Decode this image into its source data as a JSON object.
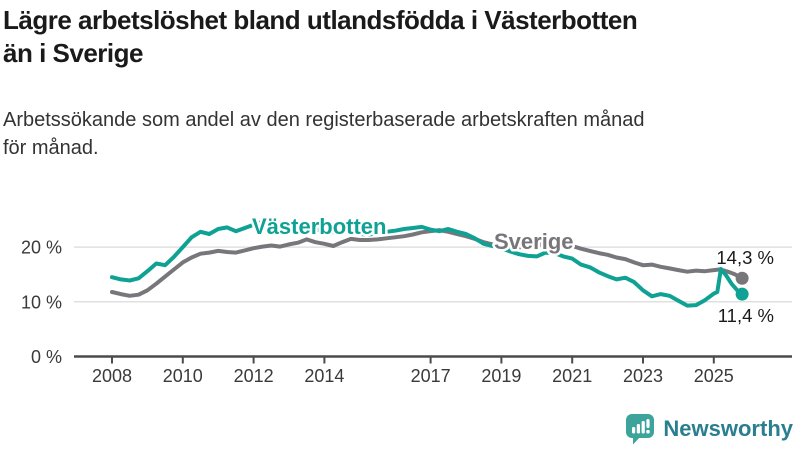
{
  "header": {
    "title": "Lägre arbetslöshet bland utlandsfödda i Västerbotten än i Sverige",
    "title_lines": [
      "Lägre arbetslöshet bland utlandsfödda i Västerbotten",
      "än i Sverige"
    ],
    "subtitle": "Arbetssökande som andel av den registerbaserade arbetskraften månad för månad.",
    "subtitle_lines": [
      "Arbetssökande som andel av den registerbaserade arbetskraften månad",
      "för månad."
    ]
  },
  "chart_data": {
    "type": "line",
    "title": "Lägre arbetslöshet bland utlandsfödda i Västerbotten än i Sverige",
    "subtitle": "Arbetssökande som andel av den registerbaserade arbetskraften månad för månad.",
    "unit": "%",
    "grid": "horizontal",
    "legend_position": "inline-labels",
    "xlim": [
      2007.7,
      2026.3
    ],
    "ylim": [
      0,
      27.5
    ],
    "x_ticks": [
      2008,
      2010,
      2012,
      2014,
      2017,
      2019,
      2021,
      2023,
      2025
    ],
    "y_ticks": [
      {
        "value": 0,
        "label": "0 %"
      },
      {
        "value": 10,
        "label": "10 %"
      },
      {
        "value": 20,
        "label": "20 %"
      }
    ],
    "colors": {
      "grid": "#e0e0e0",
      "axis": "#4b4b4b",
      "tick_text": "#3a3a3a",
      "annotation_text": "#1a1a1a"
    },
    "series": [
      {
        "name": "Västerbotten",
        "color": "#0fa294",
        "end_value": 11.4,
        "end_label": "11,4 %",
        "x": [
          2008.0,
          2008.25,
          2008.5,
          2008.75,
          2009.0,
          2009.25,
          2009.5,
          2009.75,
          2010.0,
          2010.25,
          2010.5,
          2010.75,
          2011.0,
          2011.25,
          2011.5,
          2011.75,
          2012.0,
          2012.25,
          2012.5,
          2012.75,
          2013.0,
          2013.25,
          2013.5,
          2013.75,
          2014.0,
          2014.25,
          2014.5,
          2014.75,
          2015.0,
          2015.25,
          2015.5,
          2015.75,
          2016.0,
          2016.25,
          2016.5,
          2016.75,
          2017.0,
          2017.25,
          2017.5,
          2017.75,
          2018.0,
          2018.25,
          2018.5,
          2018.75,
          2019.0,
          2019.25,
          2019.5,
          2019.75,
          2020.0,
          2020.25,
          2020.5,
          2020.75,
          2021.0,
          2021.25,
          2021.5,
          2021.75,
          2022.0,
          2022.25,
          2022.5,
          2022.75,
          2023.0,
          2023.25,
          2023.5,
          2023.75,
          2024.0,
          2024.25,
          2024.5,
          2024.75,
          2025.0,
          2025.1,
          2025.2,
          2025.35,
          2025.5,
          2025.65,
          2025.8
        ],
        "values": [
          14.5,
          14.1,
          13.9,
          14.3,
          15.6,
          17.0,
          16.7,
          18.2,
          20.0,
          21.8,
          22.8,
          22.4,
          23.3,
          23.6,
          22.9,
          23.5,
          24.1,
          24.6,
          24.2,
          23.9,
          23.7,
          23.4,
          23.6,
          23.2,
          23.0,
          22.7,
          22.9,
          22.6,
          22.4,
          22.3,
          22.5,
          22.8,
          23.0,
          23.3,
          23.5,
          23.7,
          23.2,
          22.9,
          23.3,
          22.8,
          22.4,
          21.6,
          20.6,
          20.2,
          19.8,
          19.2,
          18.7,
          18.4,
          18.3,
          19.0,
          18.9,
          18.3,
          17.9,
          16.8,
          16.3,
          15.4,
          14.7,
          14.1,
          14.4,
          13.6,
          12.1,
          11.0,
          11.4,
          11.1,
          10.2,
          9.3,
          9.4,
          10.3,
          11.5,
          11.8,
          16.0,
          14.8,
          13.3,
          12.2,
          11.4
        ]
      },
      {
        "name": "Sverige",
        "color": "#77777b",
        "end_value": 14.3,
        "end_label": "14,3 %",
        "x": [
          2008.0,
          2008.25,
          2008.5,
          2008.75,
          2009.0,
          2009.25,
          2009.5,
          2009.75,
          2010.0,
          2010.25,
          2010.5,
          2010.75,
          2011.0,
          2011.25,
          2011.5,
          2011.75,
          2012.0,
          2012.25,
          2012.5,
          2012.75,
          2013.0,
          2013.25,
          2013.5,
          2013.75,
          2014.0,
          2014.25,
          2014.5,
          2014.75,
          2015.0,
          2015.25,
          2015.5,
          2015.75,
          2016.0,
          2016.25,
          2016.5,
          2016.75,
          2017.0,
          2017.25,
          2017.5,
          2017.75,
          2018.0,
          2018.25,
          2018.5,
          2018.75,
          2019.0,
          2019.25,
          2019.5,
          2019.75,
          2020.0,
          2020.25,
          2020.5,
          2020.75,
          2021.0,
          2021.25,
          2021.5,
          2021.75,
          2022.0,
          2022.25,
          2022.5,
          2022.75,
          2023.0,
          2023.25,
          2023.5,
          2023.75,
          2024.0,
          2024.25,
          2024.5,
          2024.75,
          2025.0,
          2025.15,
          2025.3,
          2025.45,
          2025.6,
          2025.8
        ],
        "values": [
          11.8,
          11.4,
          11.1,
          11.3,
          12.1,
          13.3,
          14.6,
          15.9,
          17.2,
          18.1,
          18.8,
          19.0,
          19.3,
          19.1,
          19.0,
          19.4,
          19.8,
          20.1,
          20.3,
          20.1,
          20.5,
          20.8,
          21.4,
          20.9,
          20.6,
          20.2,
          20.9,
          21.5,
          21.3,
          21.3,
          21.4,
          21.6,
          21.8,
          22.0,
          22.3,
          22.7,
          22.9,
          23.1,
          22.8,
          22.4,
          22.0,
          21.5,
          20.9,
          20.5,
          20.3,
          20.1,
          20.0,
          20.0,
          20.1,
          20.9,
          21.2,
          20.7,
          20.2,
          19.7,
          19.3,
          18.9,
          18.6,
          18.1,
          17.8,
          17.2,
          16.7,
          16.8,
          16.4,
          16.1,
          15.8,
          15.5,
          15.7,
          15.6,
          15.8,
          15.9,
          15.7,
          15.4,
          15.0,
          14.3
        ]
      }
    ]
  },
  "logo": {
    "text": "Newsworthy",
    "icon": "bar-chart-speech-bubble-icon",
    "icon_color": "#3da49c",
    "text_color": "#2a7e90"
  }
}
